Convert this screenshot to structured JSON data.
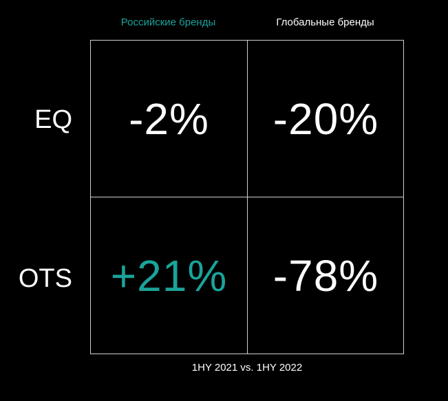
{
  "columns": {
    "russian": "Российские бренды",
    "global": "Глобальные бренды"
  },
  "rows": {
    "eq": "EQ",
    "ots": "OTS"
  },
  "cells": {
    "eq_russian": "-2%",
    "eq_global": "-20%",
    "ots_russian": "+21%",
    "ots_global": "-78%"
  },
  "footer": "1HY 2021 vs. 1HY 2022",
  "colors": {
    "accent": "#1aa39a",
    "text": "#ffffff",
    "background": "#000000",
    "grid": "#cfcfcf"
  }
}
